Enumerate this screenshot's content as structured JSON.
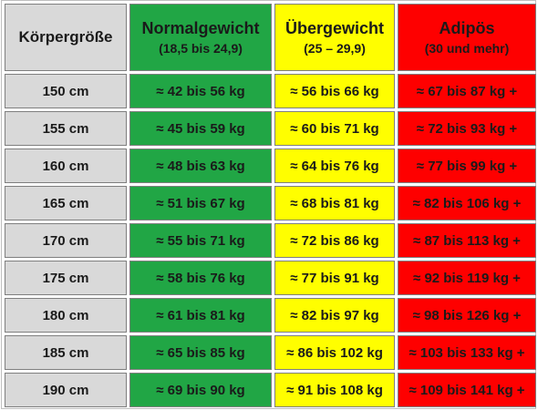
{
  "colors": {
    "height_column": "#d9d9d9",
    "normal": "#21a645",
    "over": "#fffe00",
    "adip": "#fe0000"
  },
  "header": {
    "height": "Körpergröße",
    "normal": {
      "title": "Normalgewicht",
      "range": "(18,5 bis 24,9)"
    },
    "over": {
      "title": "Übergewicht",
      "range": "(25 – 29,9)"
    },
    "adip": {
      "title": "Adipös",
      "range": "(30 und mehr)"
    }
  },
  "rows": [
    {
      "height": "150 cm",
      "normal": "≈ 42 bis 56 kg",
      "over": "≈ 56 bis 66 kg",
      "adip": "≈ 67 bis 87 kg +"
    },
    {
      "height": "155 cm",
      "normal": "≈ 45 bis 59 kg",
      "over": "≈ 60 bis 71 kg",
      "adip": "≈ 72 bis 93 kg +"
    },
    {
      "height": "160 cm",
      "normal": "≈ 48 bis 63 kg",
      "over": "≈ 64 bis 76 kg",
      "adip": "≈ 77 bis 99 kg +"
    },
    {
      "height": "165 cm",
      "normal": "≈ 51 bis 67 kg",
      "over": "≈ 68 bis 81 kg",
      "adip": "≈ 82 bis 106 kg +"
    },
    {
      "height": "170 cm",
      "normal": "≈ 55 bis 71 kg",
      "over": "≈ 72 bis 86 kg",
      "adip": "≈ 87 bis 113 kg +"
    },
    {
      "height": "175 cm",
      "normal": "≈ 58 bis 76 kg",
      "over": "≈ 77 bis 91 kg",
      "adip": "≈ 92 bis 119 kg +"
    },
    {
      "height": "180 cm",
      "normal": "≈ 61 bis 81 kg",
      "over": "≈ 82 bis 97 kg",
      "adip": "≈ 98 bis 126 kg +"
    },
    {
      "height": "185 cm",
      "normal": "≈ 65 bis 85 kg",
      "over": "≈ 86 bis 102 kg",
      "adip": "≈ 103 bis 133 kg +"
    },
    {
      "height": "190 cm",
      "normal": "≈ 69 bis 90 kg",
      "over": "≈ 91 bis 108 kg",
      "adip": "≈ 109 bis 141 kg +"
    }
  ]
}
